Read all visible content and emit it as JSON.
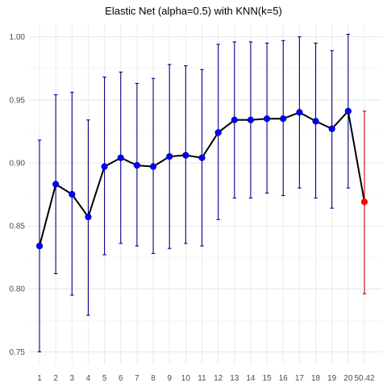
{
  "chart_data": {
    "type": "line",
    "title": "Elastic Net (alpha=0.5) with KNN(k=5)",
    "xlabel": "",
    "ylabel": "",
    "grid": true,
    "ylim": [
      0.74,
      1.01
    ],
    "y_ticks": [
      0.75,
      0.8,
      0.85,
      0.9,
      0.95,
      1.0
    ],
    "y_tick_labels": [
      "0.75",
      "0.80",
      "0.85",
      "0.90",
      "0.95",
      "1.00"
    ],
    "x_tick_labels": [
      "1",
      "2",
      "3",
      "4",
      "5",
      "6",
      "7",
      "8",
      "9",
      "10",
      "11",
      "12",
      "13",
      "14",
      "15",
      "16",
      "17",
      "18",
      "19",
      "20",
      "50.42"
    ],
    "series_color": "#0000ff",
    "errorbar_color": "#00008b",
    "line_color": "#000000",
    "highlight_color": "#ff0000",
    "highlight_errorbar_color": "#cc0000",
    "points": [
      {
        "x": "1",
        "y": 0.834,
        "lo": 0.75,
        "hi": 0.918
      },
      {
        "x": "2",
        "y": 0.883,
        "lo": 0.812,
        "hi": 0.954
      },
      {
        "x": "3",
        "y": 0.875,
        "lo": 0.795,
        "hi": 0.956
      },
      {
        "x": "4",
        "y": 0.857,
        "lo": 0.779,
        "hi": 0.934
      },
      {
        "x": "5",
        "y": 0.897,
        "lo": 0.827,
        "hi": 0.968
      },
      {
        "x": "6",
        "y": 0.904,
        "lo": 0.836,
        "hi": 0.972
      },
      {
        "x": "7",
        "y": 0.898,
        "lo": 0.834,
        "hi": 0.963
      },
      {
        "x": "8",
        "y": 0.897,
        "lo": 0.828,
        "hi": 0.967
      },
      {
        "x": "9",
        "y": 0.905,
        "lo": 0.832,
        "hi": 0.978
      },
      {
        "x": "10",
        "y": 0.906,
        "lo": 0.836,
        "hi": 0.977
      },
      {
        "x": "11",
        "y": 0.904,
        "lo": 0.834,
        "hi": 0.974
      },
      {
        "x": "12",
        "y": 0.924,
        "lo": 0.855,
        "hi": 0.994
      },
      {
        "x": "13",
        "y": 0.934,
        "lo": 0.872,
        "hi": 0.996
      },
      {
        "x": "14",
        "y": 0.934,
        "lo": 0.872,
        "hi": 0.996
      },
      {
        "x": "15",
        "y": 0.935,
        "lo": 0.876,
        "hi": 0.995
      },
      {
        "x": "16",
        "y": 0.935,
        "lo": 0.874,
        "hi": 0.997
      },
      {
        "x": "17",
        "y": 0.94,
        "lo": 0.88,
        "hi": 1.0
      },
      {
        "x": "18",
        "y": 0.933,
        "lo": 0.872,
        "hi": 0.995
      },
      {
        "x": "19",
        "y": 0.927,
        "lo": 0.864,
        "hi": 0.989
      },
      {
        "x": "20",
        "y": 0.941,
        "lo": 0.88,
        "hi": 1.002
      },
      {
        "x": "50.42",
        "y": 0.869,
        "lo": 0.796,
        "hi": 0.941,
        "highlight": true
      }
    ]
  }
}
